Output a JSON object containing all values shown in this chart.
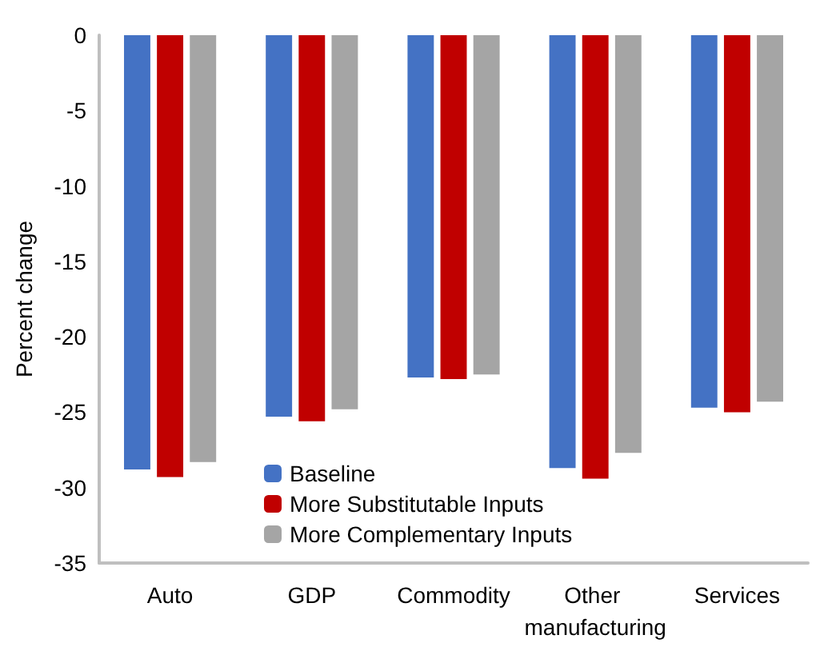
{
  "chart_data": {
    "type": "bar",
    "ylabel": "Percent change",
    "categories": [
      "Auto",
      "GDP",
      "Commodity",
      "Other manufacturing",
      "Services"
    ],
    "series": [
      {
        "name": "Baseline",
        "color": "#4472c4",
        "values": [
          -28.8,
          -25.3,
          -22.7,
          -28.7,
          -24.7
        ]
      },
      {
        "name": "More Substitutable Inputs",
        "color": "#c00000",
        "values": [
          -29.3,
          -25.6,
          -22.8,
          -29.4,
          -25.0
        ]
      },
      {
        "name": "More Complementary Inputs",
        "color": "#a5a5a5",
        "values": [
          -28.3,
          -24.8,
          -22.5,
          -27.7,
          -24.3
        ]
      }
    ],
    "ylim": [
      -35,
      0
    ],
    "yticks": [
      -35,
      -30,
      -25,
      -20,
      -15,
      -10,
      -5,
      0
    ],
    "grid": false,
    "legend": "bottom left"
  }
}
